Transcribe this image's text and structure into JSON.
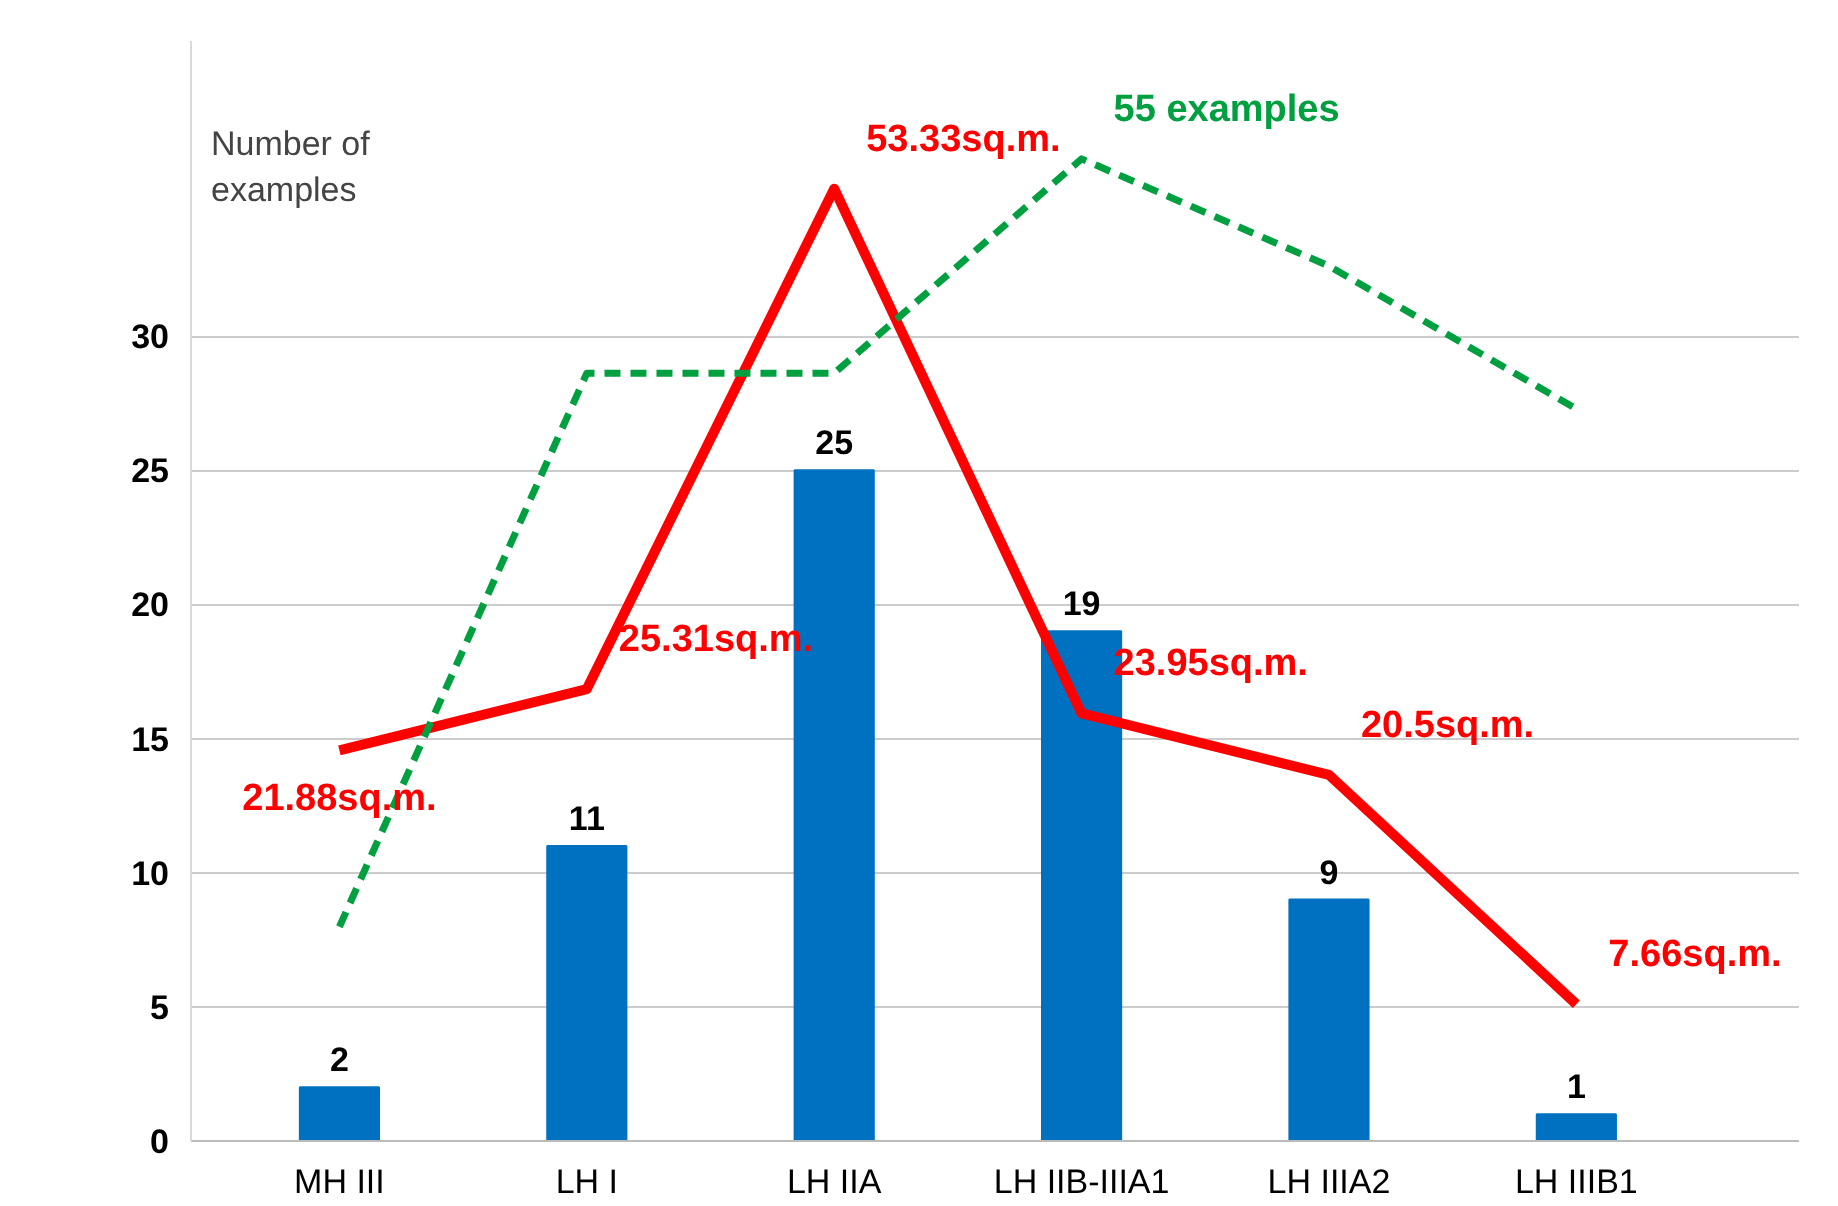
{
  "chart_data": {
    "type": "bar",
    "ylabel": "Number of examples",
    "categories": [
      "MH III",
      "LH I",
      "LH IIA",
      "LH IIB-IIIA1",
      "LH IIIA2",
      "LH IIIB1"
    ],
    "ylim": [
      0,
      41
    ],
    "yticks": [
      0,
      5,
      10,
      15,
      20,
      25,
      30
    ],
    "grid": "y",
    "series": [
      {
        "color": "#0070c0",
        "values": [
          2,
          11,
          25,
          19,
          9,
          1
        ],
        "data_labels": true
      },
      {
        "type": "line",
        "axis": "y2",
        "color": "#ff0000",
        "values": [
          21.88,
          25.31,
          53.33,
          23.95,
          20.5,
          7.66
        ],
        "value_labels": [
          "21.88sq.m.",
          "25.31sq.m.",
          "53.33sq.m.",
          "23.95sq.m.",
          "20.5sq.m.",
          "7.66sq.m."
        ],
        "line_style": "solid"
      },
      {
        "type": "line",
        "axis": "y2",
        "color": "#00a040",
        "values": [
          12,
          43,
          43,
          55,
          49,
          41
        ],
        "value_labels": [
          null,
          null,
          null,
          "55 examples",
          null,
          null
        ],
        "line_style": "dashed"
      }
    ]
  }
}
